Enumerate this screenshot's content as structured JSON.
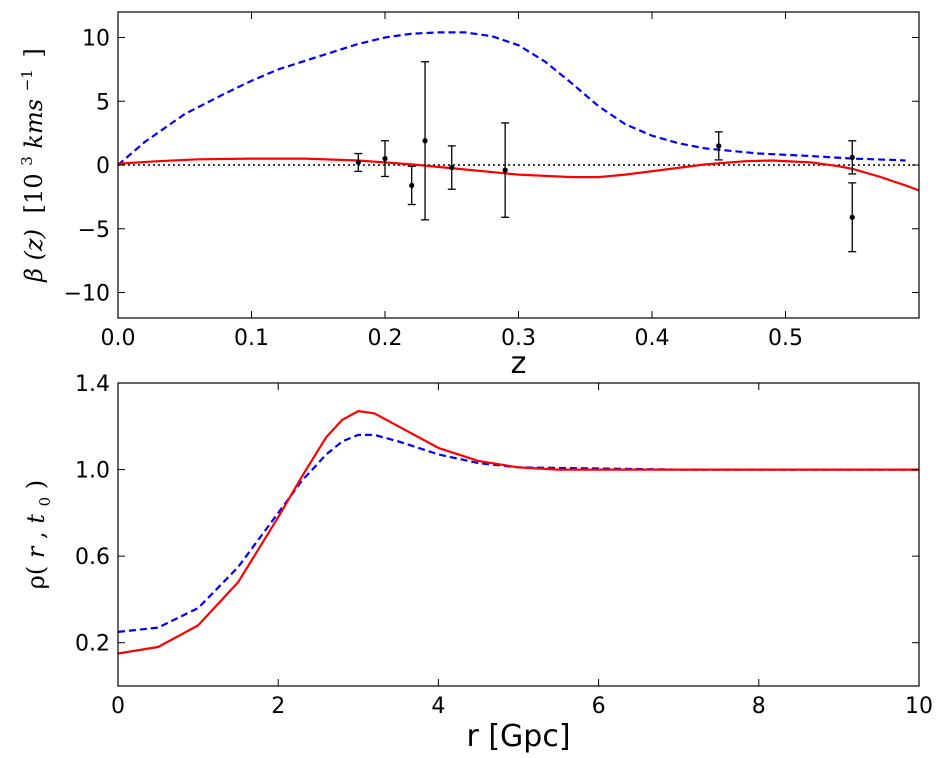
{
  "chart_data": [
    {
      "type": "line",
      "xlabel": "z",
      "ylabel_parts": {
        "lhs": "β (z)",
        "unit_open": "[10",
        "unit_exp": "3",
        "unit_mid": " kms",
        "unit_exp2": "−1",
        "unit_close": "]"
      },
      "xlim": [
        0.0,
        0.6
      ],
      "ylim": [
        -12,
        12
      ],
      "xticks": [
        0.0,
        0.1,
        0.2,
        0.3,
        0.4,
        0.5
      ],
      "xtick_labels": [
        "0.0",
        "0.1",
        "0.2",
        "0.3",
        "0.4",
        "0.5"
      ],
      "yticks": [
        10,
        5,
        0,
        -5,
        -10
      ],
      "ytick_labels": [
        "10",
        "5",
        "0",
        "−5",
        "−10"
      ],
      "reference_line": {
        "y": 0,
        "style": "dotted",
        "color": "#000000"
      },
      "series": [
        {
          "name": "blue dashed model",
          "color": "#0000ff",
          "style": "dashed",
          "x": [
            0.0,
            0.02,
            0.05,
            0.08,
            0.1,
            0.12,
            0.15,
            0.18,
            0.2,
            0.22,
            0.24,
            0.26,
            0.28,
            0.3,
            0.32,
            0.34,
            0.36,
            0.38,
            0.4,
            0.42,
            0.44,
            0.46,
            0.48,
            0.5,
            0.52,
            0.55,
            0.58,
            0.59
          ],
          "y": [
            0.0,
            1.8,
            4.0,
            5.6,
            6.6,
            7.5,
            8.5,
            9.5,
            10.0,
            10.3,
            10.4,
            10.4,
            10.1,
            9.4,
            8.1,
            6.4,
            4.6,
            3.2,
            2.3,
            1.7,
            1.3,
            1.1,
            0.9,
            0.8,
            0.7,
            0.5,
            0.4,
            0.35
          ]
        },
        {
          "name": "red solid model",
          "color": "#ff0000",
          "style": "solid",
          "x": [
            0.0,
            0.03,
            0.06,
            0.1,
            0.14,
            0.18,
            0.22,
            0.26,
            0.3,
            0.34,
            0.36,
            0.38,
            0.41,
            0.44,
            0.47,
            0.49,
            0.52,
            0.54,
            0.55,
            0.57,
            0.59,
            0.6
          ],
          "y": [
            0.1,
            0.3,
            0.45,
            0.5,
            0.5,
            0.35,
            0.05,
            -0.35,
            -0.75,
            -0.95,
            -0.95,
            -0.75,
            -0.35,
            0.05,
            0.3,
            0.35,
            0.2,
            -0.1,
            -0.3,
            -0.9,
            -1.6,
            -2.0
          ]
        }
      ],
      "errorbars": {
        "color": "#000000",
        "x": [
          0.18,
          0.2,
          0.22,
          0.23,
          0.25,
          0.29,
          0.45,
          0.55,
          0.55
        ],
        "y": [
          0.2,
          0.5,
          -1.6,
          1.9,
          -0.2,
          -0.4,
          1.5,
          0.6,
          -4.1
        ],
        "yerr": [
          0.7,
          1.4,
          1.5,
          6.2,
          1.7,
          3.7,
          1.1,
          1.3,
          2.7
        ]
      }
    },
    {
      "type": "line",
      "xlabel": "r [Gpc]",
      "ylabel_parts": {
        "rho": "ρ(",
        "r": "r",
        "comma": ", ",
        "t": "t",
        "sub": "0",
        "close": ")"
      },
      "xlim": [
        0,
        10
      ],
      "ylim": [
        0.0,
        1.4
      ],
      "xticks": [
        0,
        2,
        4,
        6,
        8,
        10
      ],
      "xtick_labels": [
        "0",
        "2",
        "4",
        "6",
        "8",
        "10"
      ],
      "yticks": [
        1.4,
        1.0,
        0.6,
        0.2
      ],
      "ytick_labels": [
        "1.4",
        "1.0",
        "0.6",
        "0.2"
      ],
      "series": [
        {
          "name": "blue dashed density",
          "color": "#0000ff",
          "style": "dashed",
          "x": [
            0,
            0.5,
            1.0,
            1.5,
            2.0,
            2.3,
            2.6,
            2.8,
            3.0,
            3.2,
            3.5,
            4.0,
            4.5,
            5.0,
            6.0,
            7.0,
            8.0,
            9.0,
            10.0
          ],
          "y": [
            0.25,
            0.27,
            0.36,
            0.55,
            0.8,
            0.95,
            1.07,
            1.13,
            1.16,
            1.16,
            1.13,
            1.07,
            1.03,
            1.01,
            1.005,
            1.0,
            1.0,
            1.0,
            1.0
          ]
        },
        {
          "name": "red solid density",
          "color": "#ff0000",
          "style": "solid",
          "x": [
            0,
            0.5,
            1.0,
            1.5,
            2.0,
            2.3,
            2.6,
            2.8,
            3.0,
            3.2,
            3.5,
            4.0,
            4.5,
            5.0,
            5.5,
            6.0,
            7.0,
            8.0,
            9.0,
            10.0
          ],
          "y": [
            0.15,
            0.18,
            0.28,
            0.48,
            0.78,
            0.97,
            1.15,
            1.23,
            1.27,
            1.26,
            1.2,
            1.1,
            1.04,
            1.01,
            1.0,
            1.0,
            1.0,
            1.0,
            1.0,
            1.0
          ]
        }
      ]
    }
  ]
}
